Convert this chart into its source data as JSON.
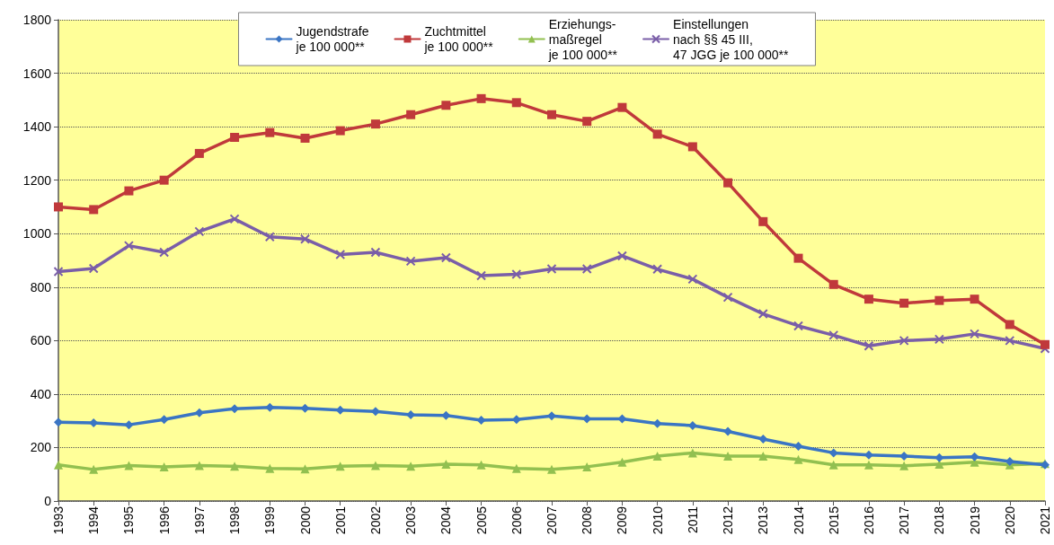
{
  "chart_data": {
    "type": "line",
    "categories": [
      "1993",
      "1994",
      "1995",
      "1996",
      "1997",
      "1998",
      "1999",
      "2000",
      "2001",
      "2002",
      "2003",
      "2004",
      "2005",
      "2006",
      "2007",
      "2008",
      "2009",
      "2010",
      "2011",
      "2012",
      "2013",
      "2014",
      "2015",
      "2016",
      "2017",
      "2018",
      "2019",
      "2020",
      "2021"
    ],
    "series": [
      {
        "name": "Jugendstrafe\nje 100 000**",
        "color": "#3a75c4",
        "marker": "diamond",
        "values": [
          295,
          292,
          285,
          305,
          330,
          345,
          350,
          347,
          340,
          335,
          322,
          320,
          302,
          305,
          318,
          307,
          307,
          290,
          282,
          260,
          232,
          205,
          180,
          172,
          168,
          162,
          165,
          148,
          135
        ]
      },
      {
        "name": "Zuchtmittel\nje 100 000**",
        "color": "#c0393b",
        "marker": "square",
        "values": [
          1100,
          1090,
          1160,
          1200,
          1300,
          1360,
          1378,
          1357,
          1385,
          1410,
          1445,
          1480,
          1505,
          1490,
          1445,
          1420,
          1472,
          1372,
          1325,
          1190,
          1045,
          908,
          810,
          755,
          740,
          750,
          755,
          660,
          585
        ]
      },
      {
        "name": "Erziehungs-\nmaßregel\nje 100 000**",
        "color": "#92c050",
        "marker": "triangle",
        "values": [
          135,
          118,
          133,
          128,
          133,
          130,
          122,
          120,
          130,
          133,
          130,
          138,
          135,
          122,
          118,
          128,
          145,
          168,
          180,
          168,
          168,
          155,
          135,
          135,
          132,
          138,
          145,
          135,
          140
        ]
      },
      {
        "name": "Einstellungen\nnach §§ 45 III,\n47 JGG je 100 000**",
        "color": "#7a5ea8",
        "marker": "cross",
        "values": [
          858,
          870,
          955,
          930,
          1008,
          1055,
          988,
          980,
          922,
          930,
          897,
          910,
          843,
          848,
          868,
          868,
          917,
          867,
          830,
          762,
          700,
          655,
          620,
          580,
          600,
          605,
          625,
          600,
          570
        ]
      }
    ],
    "ylim": [
      0,
      1800
    ],
    "yticks": [
      0,
      200,
      400,
      600,
      800,
      1000,
      1200,
      1400,
      1600,
      1800
    ],
    "grid": "y",
    "legend": "top",
    "line_style": "solid"
  }
}
